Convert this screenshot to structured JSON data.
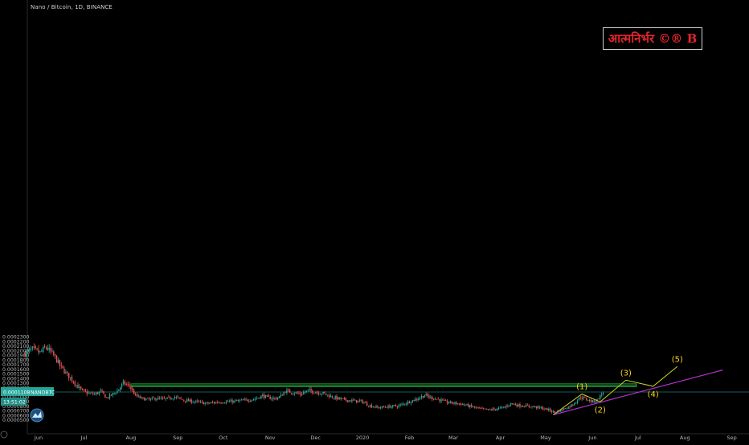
{
  "header": {
    "title": "Nano / Bitcoin, 1D, BINANCE"
  },
  "watermark": {
    "text": "आत्मनिर्भर ©® B",
    "color": "#e0262b"
  },
  "price_tag": {
    "price": "0.0001108",
    "symbol": "NANOBTC",
    "countdown": "13:51:02",
    "color": "#26a69a"
  },
  "colors": {
    "up": "#26a69a",
    "down": "#ef5350",
    "zone": "#1f9b3a",
    "wave": "#c8d42a",
    "trend": "#b030c8",
    "label": "#ffd21a"
  },
  "chart_data": {
    "type": "line",
    "title": "Nano / Bitcoin, 1D, BINANCE",
    "ylim": [
      5e-05,
      0.00023
    ],
    "y_ticks": [
      "0.0002300",
      "0.0002200",
      "0.0002100",
      "0.0002000",
      "0.0001900",
      "0.0001800",
      "0.0001700",
      "0.0001600",
      "0.0001500",
      "0.0001400",
      "0.0001300",
      "0.0001200",
      "0.0001100",
      "0.0001000",
      "0.0000900",
      "0.0000800",
      "0.0000700",
      "0.0000600",
      "0.0000500"
    ],
    "x_ticks": [
      {
        "label": "Jun",
        "date": "2019-06-01"
      },
      {
        "label": "Jul",
        "date": "2019-07-01"
      },
      {
        "label": "Aug",
        "date": "2019-08-01"
      },
      {
        "label": "Sep",
        "date": "2019-09-01"
      },
      {
        "label": "Oct",
        "date": "2019-10-01"
      },
      {
        "label": "Nov",
        "date": "2019-11-01"
      },
      {
        "label": "Dec",
        "date": "2019-12-01"
      },
      {
        "label": "2020",
        "date": "2020-01-01"
      },
      {
        "label": "Feb",
        "date": "2020-02-01"
      },
      {
        "label": "Mar",
        "date": "2020-03-01"
      },
      {
        "label": "Apr",
        "date": "2020-04-01"
      },
      {
        "label": "May",
        "date": "2020-05-01"
      },
      {
        "label": "Jun",
        "date": "2020-06-01"
      },
      {
        "label": "Jul",
        "date": "2020-07-01"
      },
      {
        "label": "Aug",
        "date": "2020-08-01"
      },
      {
        "label": "Sep",
        "date": "2020-09-01"
      },
      {
        "label": "22",
        "date": "2020-09-22"
      }
    ],
    "series": [
      {
        "name": "NANOBTC",
        "points": [
          [
            "2019-05-23",
            0.000195
          ],
          [
            "2019-05-28",
            0.000203
          ],
          [
            "2019-06-02",
            0.000196
          ],
          [
            "2019-06-06",
            0.000208
          ],
          [
            "2019-06-09",
            0.000197
          ],
          [
            "2019-06-12",
            0.000186
          ],
          [
            "2019-06-15",
            0.000168
          ],
          [
            "2019-06-19",
            0.000152
          ],
          [
            "2019-06-23",
            0.000138
          ],
          [
            "2019-06-27",
            0.000122
          ],
          [
            "2019-06-30",
            0.000113
          ],
          [
            "2019-07-04",
            0.000108
          ],
          [
            "2019-07-08",
            0.000106
          ],
          [
            "2019-07-12",
            0.000112
          ],
          [
            "2019-07-16",
            9.8e-05
          ],
          [
            "2019-07-19",
            0.000104
          ],
          [
            "2019-07-23",
            0.000113
          ],
          [
            "2019-07-27",
            0.00013
          ],
          [
            "2019-07-31",
            0.000124
          ],
          [
            "2019-08-04",
            0.000103
          ],
          [
            "2019-08-08",
            9.7e-05
          ],
          [
            "2019-08-13",
            9.4e-05
          ],
          [
            "2019-08-17",
            9.7e-05
          ],
          [
            "2019-08-23",
            9.5e-05
          ],
          [
            "2019-08-30",
            0.0001
          ],
          [
            "2019-09-05",
            9.3e-05
          ],
          [
            "2019-09-12",
            9e-05
          ],
          [
            "2019-09-20",
            8.6e-05
          ],
          [
            "2019-09-28",
            8.9e-05
          ],
          [
            "2019-10-05",
            9e-05
          ],
          [
            "2019-10-10",
            9.1e-05
          ],
          [
            "2019-10-16",
            9.3e-05
          ],
          [
            "2019-10-22",
            9.6e-05
          ],
          [
            "2019-10-27",
            0.000103
          ],
          [
            "2019-10-31",
            9.8e-05
          ],
          [
            "2019-11-05",
            9.7e-05
          ],
          [
            "2019-11-08",
            0.000102
          ],
          [
            "2019-11-11",
            0.000113
          ],
          [
            "2019-11-16",
            0.00011
          ],
          [
            "2019-11-21",
            0.000106
          ],
          [
            "2019-11-26",
            0.000114
          ],
          [
            "2019-12-01",
            0.000111
          ],
          [
            "2019-12-06",
            0.000108
          ],
          [
            "2019-12-12",
            0.0001
          ],
          [
            "2019-12-18",
            9.5e-05
          ],
          [
            "2019-12-25",
            9.2e-05
          ],
          [
            "2020-01-01",
            9e-05
          ],
          [
            "2020-01-05",
            8.2e-05
          ],
          [
            "2020-01-11",
            7.7e-05
          ],
          [
            "2020-01-18",
            7.9e-05
          ],
          [
            "2020-01-25",
            8.1e-05
          ],
          [
            "2020-02-01",
            9e-05
          ],
          [
            "2020-02-06",
            9.6e-05
          ],
          [
            "2020-02-11",
            0.000104
          ],
          [
            "2020-02-15",
            9.9e-05
          ],
          [
            "2020-02-20",
            9.5e-05
          ],
          [
            "2020-02-25",
            8.9e-05
          ],
          [
            "2020-03-01",
            8.7e-05
          ],
          [
            "2020-03-06",
            8.5e-05
          ],
          [
            "2020-03-12",
            8e-05
          ],
          [
            "2020-03-18",
            7.5e-05
          ],
          [
            "2020-03-24",
            7.2e-05
          ],
          [
            "2020-03-29",
            7.4e-05
          ],
          [
            "2020-04-04",
            7.8e-05
          ],
          [
            "2020-04-08",
            8.6e-05
          ],
          [
            "2020-04-13",
            8.2e-05
          ],
          [
            "2020-04-20",
            8e-05
          ],
          [
            "2020-04-27",
            7.7e-05
          ],
          [
            "2020-05-03",
            7.2e-05
          ],
          [
            "2020-05-07",
            6.6e-05
          ],
          [
            "2020-05-12",
            7.3e-05
          ],
          [
            "2020-05-17",
            8e-05
          ],
          [
            "2020-05-21",
            9e-05
          ],
          [
            "2020-05-24",
            0.0001
          ],
          [
            "2020-05-28",
            9.5e-05
          ],
          [
            "2020-06-01",
            9e-05
          ],
          [
            "2020-06-04",
            9.4e-05
          ],
          [
            "2020-06-07",
            0.000106
          ],
          [
            "2020-06-08",
            0.000111
          ]
        ]
      }
    ],
    "zone": {
      "from": "2019-08-01",
      "to": "2020-06-30",
      "low": 0.0001225,
      "mid": 0.0001247,
      "high": 0.0001285
    },
    "current_price": 0.0001108,
    "waves": [
      {
        "label": "(1)",
        "date": "2020-05-25",
        "price": 0.0001065,
        "anchor": "above"
      },
      {
        "label": "(2)",
        "date": "2020-06-06",
        "price": 8.95e-05,
        "anchor": "below"
      },
      {
        "label": "(3)",
        "date": "2020-06-23",
        "price": 0.0001365,
        "anchor": "above"
      },
      {
        "label": "(4)",
        "date": "2020-07-11",
        "price": 0.0001232,
        "anchor": "below"
      },
      {
        "label": "(5)",
        "date": "2020-07-27",
        "price": 0.000166,
        "anchor": "above"
      }
    ],
    "wave_path": [
      [
        "2020-05-06",
        6.15e-05
      ],
      [
        "2020-05-25",
        0.0001065
      ],
      [
        "2020-06-06",
        8.95e-05
      ],
      [
        "2020-06-23",
        0.0001365
      ],
      [
        "2020-07-11",
        0.0001232
      ],
      [
        "2020-07-27",
        0.000166
      ]
    ],
    "trendline": [
      [
        "2020-05-06",
        6.15e-05
      ],
      [
        "2020-08-26",
        0.0001585
      ]
    ],
    "grid": false,
    "legend": "none"
  }
}
